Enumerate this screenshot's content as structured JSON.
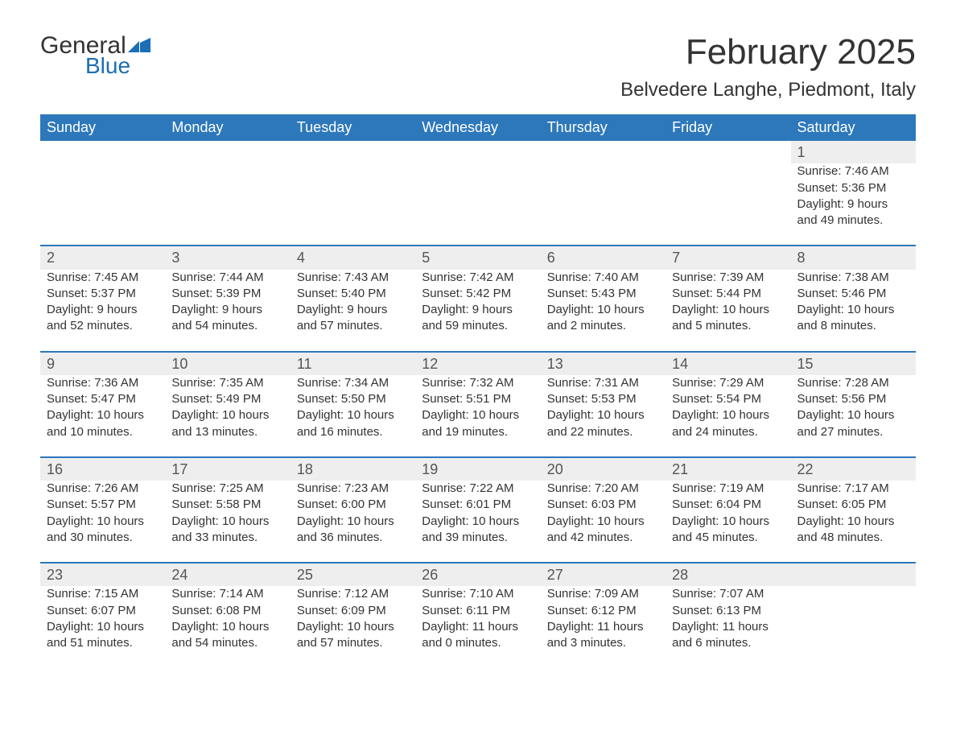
{
  "brand": {
    "word1": "General",
    "word2": "Blue",
    "icon_color": "#1a6fb5"
  },
  "title": "February 2025",
  "location": "Belvedere Langhe, Piedmont, Italy",
  "colors": {
    "header_bg": "#2d78bb",
    "header_text": "#ffffff",
    "row_band": "#eeeeee",
    "row_border": "#2d78bb",
    "text": "#333333",
    "brand_accent": "#1a6fb5",
    "background": "#ffffff"
  },
  "typography": {
    "title_fontsize": 44,
    "location_fontsize": 24,
    "header_fontsize": 18,
    "daynum_fontsize": 18,
    "cell_fontsize": 15
  },
  "columns": [
    "Sunday",
    "Monday",
    "Tuesday",
    "Wednesday",
    "Thursday",
    "Friday",
    "Saturday"
  ],
  "weeks": [
    [
      null,
      null,
      null,
      null,
      null,
      null,
      {
        "n": "1",
        "sr": "Sunrise: 7:46 AM",
        "ss": "Sunset: 5:36 PM",
        "dl": "Daylight: 9 hours and 49 minutes."
      }
    ],
    [
      {
        "n": "2",
        "sr": "Sunrise: 7:45 AM",
        "ss": "Sunset: 5:37 PM",
        "dl": "Daylight: 9 hours and 52 minutes."
      },
      {
        "n": "3",
        "sr": "Sunrise: 7:44 AM",
        "ss": "Sunset: 5:39 PM",
        "dl": "Daylight: 9 hours and 54 minutes."
      },
      {
        "n": "4",
        "sr": "Sunrise: 7:43 AM",
        "ss": "Sunset: 5:40 PM",
        "dl": "Daylight: 9 hours and 57 minutes."
      },
      {
        "n": "5",
        "sr": "Sunrise: 7:42 AM",
        "ss": "Sunset: 5:42 PM",
        "dl": "Daylight: 9 hours and 59 minutes."
      },
      {
        "n": "6",
        "sr": "Sunrise: 7:40 AM",
        "ss": "Sunset: 5:43 PM",
        "dl": "Daylight: 10 hours and 2 minutes."
      },
      {
        "n": "7",
        "sr": "Sunrise: 7:39 AM",
        "ss": "Sunset: 5:44 PM",
        "dl": "Daylight: 10 hours and 5 minutes."
      },
      {
        "n": "8",
        "sr": "Sunrise: 7:38 AM",
        "ss": "Sunset: 5:46 PM",
        "dl": "Daylight: 10 hours and 8 minutes."
      }
    ],
    [
      {
        "n": "9",
        "sr": "Sunrise: 7:36 AM",
        "ss": "Sunset: 5:47 PM",
        "dl": "Daylight: 10 hours and 10 minutes."
      },
      {
        "n": "10",
        "sr": "Sunrise: 7:35 AM",
        "ss": "Sunset: 5:49 PM",
        "dl": "Daylight: 10 hours and 13 minutes."
      },
      {
        "n": "11",
        "sr": "Sunrise: 7:34 AM",
        "ss": "Sunset: 5:50 PM",
        "dl": "Daylight: 10 hours and 16 minutes."
      },
      {
        "n": "12",
        "sr": "Sunrise: 7:32 AM",
        "ss": "Sunset: 5:51 PM",
        "dl": "Daylight: 10 hours and 19 minutes."
      },
      {
        "n": "13",
        "sr": "Sunrise: 7:31 AM",
        "ss": "Sunset: 5:53 PM",
        "dl": "Daylight: 10 hours and 22 minutes."
      },
      {
        "n": "14",
        "sr": "Sunrise: 7:29 AM",
        "ss": "Sunset: 5:54 PM",
        "dl": "Daylight: 10 hours and 24 minutes."
      },
      {
        "n": "15",
        "sr": "Sunrise: 7:28 AM",
        "ss": "Sunset: 5:56 PM",
        "dl": "Daylight: 10 hours and 27 minutes."
      }
    ],
    [
      {
        "n": "16",
        "sr": "Sunrise: 7:26 AM",
        "ss": "Sunset: 5:57 PM",
        "dl": "Daylight: 10 hours and 30 minutes."
      },
      {
        "n": "17",
        "sr": "Sunrise: 7:25 AM",
        "ss": "Sunset: 5:58 PM",
        "dl": "Daylight: 10 hours and 33 minutes."
      },
      {
        "n": "18",
        "sr": "Sunrise: 7:23 AM",
        "ss": "Sunset: 6:00 PM",
        "dl": "Daylight: 10 hours and 36 minutes."
      },
      {
        "n": "19",
        "sr": "Sunrise: 7:22 AM",
        "ss": "Sunset: 6:01 PM",
        "dl": "Daylight: 10 hours and 39 minutes."
      },
      {
        "n": "20",
        "sr": "Sunrise: 7:20 AM",
        "ss": "Sunset: 6:03 PM",
        "dl": "Daylight: 10 hours and 42 minutes."
      },
      {
        "n": "21",
        "sr": "Sunrise: 7:19 AM",
        "ss": "Sunset: 6:04 PM",
        "dl": "Daylight: 10 hours and 45 minutes."
      },
      {
        "n": "22",
        "sr": "Sunrise: 7:17 AM",
        "ss": "Sunset: 6:05 PM",
        "dl": "Daylight: 10 hours and 48 minutes."
      }
    ],
    [
      {
        "n": "23",
        "sr": "Sunrise: 7:15 AM",
        "ss": "Sunset: 6:07 PM",
        "dl": "Daylight: 10 hours and 51 minutes."
      },
      {
        "n": "24",
        "sr": "Sunrise: 7:14 AM",
        "ss": "Sunset: 6:08 PM",
        "dl": "Daylight: 10 hours and 54 minutes."
      },
      {
        "n": "25",
        "sr": "Sunrise: 7:12 AM",
        "ss": "Sunset: 6:09 PM",
        "dl": "Daylight: 10 hours and 57 minutes."
      },
      {
        "n": "26",
        "sr": "Sunrise: 7:10 AM",
        "ss": "Sunset: 6:11 PM",
        "dl": "Daylight: 11 hours and 0 minutes."
      },
      {
        "n": "27",
        "sr": "Sunrise: 7:09 AM",
        "ss": "Sunset: 6:12 PM",
        "dl": "Daylight: 11 hours and 3 minutes."
      },
      {
        "n": "28",
        "sr": "Sunrise: 7:07 AM",
        "ss": "Sunset: 6:13 PM",
        "dl": "Daylight: 11 hours and 6 minutes."
      },
      null
    ]
  ]
}
